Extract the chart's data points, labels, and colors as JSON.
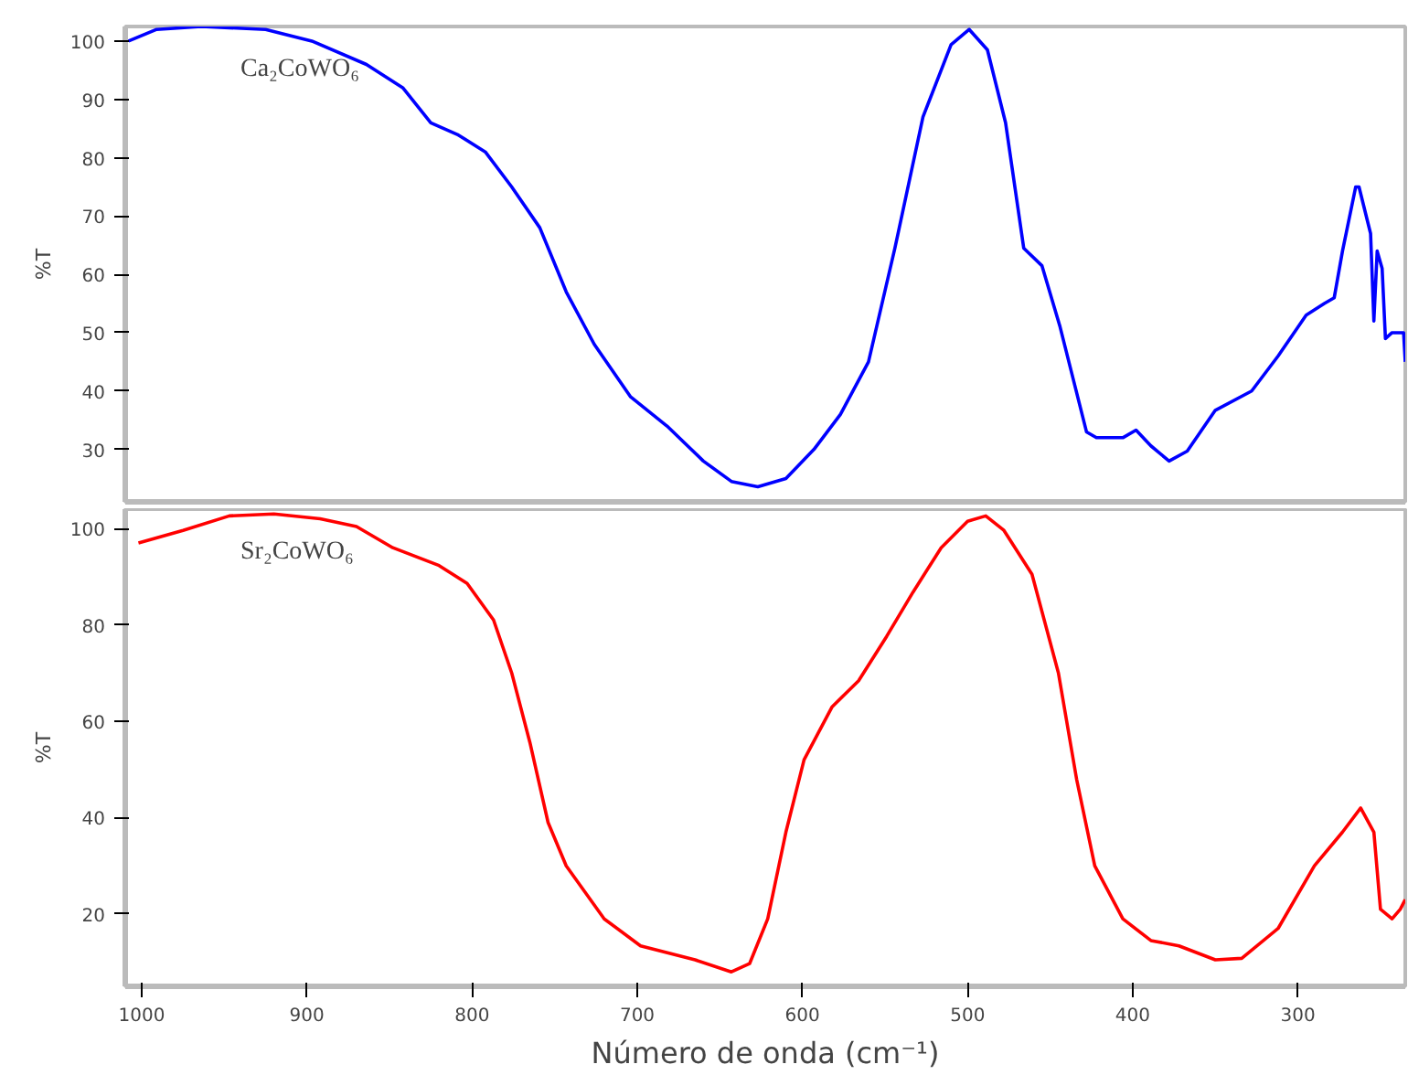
{
  "chart_data": [
    {
      "type": "line",
      "ylabel": "%T",
      "annotations": [
        "Ca₂CoWO₆"
      ],
      "xlim": [
        1010,
        235
      ],
      "ylim": [
        21,
        102.5
      ],
      "yticks": [
        30,
        40,
        50,
        60,
        70,
        80,
        90,
        100
      ],
      "tick_labels": "y",
      "grid": false,
      "marker": "none",
      "line_style": "solid",
      "series": [
        {
          "color": "#0000ff",
          "x": [
            1008,
            991,
            964,
            925,
            897,
            864,
            842,
            825,
            809,
            792,
            776,
            759,
            743,
            726,
            704,
            682,
            660,
            643,
            627,
            610,
            593,
            577,
            560,
            544,
            527,
            510,
            499,
            488,
            477,
            466,
            455,
            444,
            428,
            422,
            406,
            398,
            389,
            378,
            367,
            350,
            328,
            312,
            295,
            284,
            278,
            273,
            265,
            263,
            256,
            254,
            252,
            249,
            247,
            243,
            236,
            235
          ],
          "values": [
            100,
            102,
            102.5,
            102,
            100,
            96,
            92,
            86,
            84,
            81,
            75,
            68,
            57,
            48,
            39,
            34,
            28,
            24.5,
            23.6,
            25,
            30,
            36,
            45,
            64.5,
            87,
            99.4,
            102,
            98.5,
            86,
            64.5,
            61.5,
            51,
            33,
            32,
            32,
            33.3,
            30.6,
            28,
            29.7,
            36.7,
            40,
            46,
            53,
            55,
            56,
            64,
            75,
            75,
            67,
            52,
            64,
            61,
            49,
            50,
            50,
            45
          ]
        }
      ]
    },
    {
      "type": "line",
      "ylabel": "%T",
      "xlabel": "Número de onda (cm⁻¹)",
      "annotations": [
        "Sr₂CoWO₆"
      ],
      "xlim": [
        1010,
        235
      ],
      "ylim": [
        5,
        104
      ],
      "xticks": [
        1000,
        900,
        800,
        700,
        600,
        500,
        400,
        300
      ],
      "yticks": [
        20,
        40,
        60,
        80,
        100
      ],
      "grid": false,
      "marker": "none",
      "line_style": "solid",
      "series": [
        {
          "color": "#ff0000",
          "x": [
            1002,
            975,
            947,
            920,
            892,
            870,
            848,
            820,
            803,
            787,
            776,
            765,
            754,
            743,
            720,
            698,
            665,
            643,
            632,
            621,
            610,
            599,
            582,
            566,
            549,
            533,
            516,
            500,
            489,
            478,
            461,
            445,
            434,
            423,
            406,
            389,
            372,
            350,
            334,
            312,
            290,
            273,
            262,
            254,
            250,
            243,
            238,
            235
          ],
          "values": [
            97,
            99.6,
            102.6,
            103,
            102,
            100.4,
            96,
            92.3,
            88.6,
            81,
            70,
            55.6,
            39,
            30,
            19,
            13.4,
            10.5,
            8,
            9.7,
            19,
            37,
            52,
            63,
            68.4,
            77.6,
            86.8,
            96,
            101.5,
            102.6,
            99.6,
            90.5,
            70,
            48,
            30,
            19,
            14.5,
            13.4,
            10.5,
            10.8,
            17,
            30,
            37,
            42,
            37,
            21,
            19,
            21,
            23
          ]
        }
      ]
    }
  ]
}
